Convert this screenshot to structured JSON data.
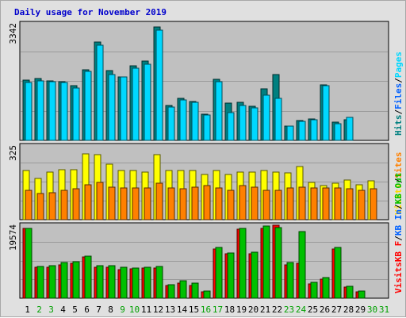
{
  "chart_data": {
    "type": "bar",
    "title": "Daily usage for November 2019",
    "categories": [
      "1",
      "2",
      "3",
      "4",
      "5",
      "6",
      "7",
      "8",
      "9",
      "10",
      "11",
      "12",
      "13",
      "14",
      "15",
      "16",
      "17",
      "18",
      "19",
      "20",
      "21",
      "22",
      "23",
      "24",
      "25",
      "26",
      "27",
      "28",
      "29",
      "30",
      "31"
    ],
    "weekend_days": [
      "2",
      "3",
      "9",
      "10",
      "16",
      "17",
      "23",
      "24",
      "30",
      "31"
    ],
    "panels": [
      {
        "id": "top",
        "ymax_label": "3342",
        "ylim": [
          0,
          3342
        ],
        "side_label": [
          {
            "text": "Hits",
            "color": "#008080"
          },
          {
            "text": "/",
            "color": "#000000"
          },
          {
            "text": "Files",
            "color": "#0060ff"
          },
          {
            "text": "/",
            "color": "#000000"
          },
          {
            "text": "Pages",
            "color": "#00d8ff"
          }
        ],
        "series": [
          {
            "name": "Hits",
            "color": "#008080",
            "values": [
              1730,
              1770,
              1700,
              1690,
              1570,
              2030,
              2810,
              1990,
              1830,
              2140,
              2270,
              3240,
              1000,
              1210,
              1120,
              750,
              1760,
              1070,
              1090,
              970,
              1480,
              1880,
              420,
              560,
              610,
              1600,
              520,
              600,
              0,
              0,
              0
            ]
          },
          {
            "name": "Files",
            "color": "#0060ff",
            "values": [
              0,
              0,
              0,
              0,
              0,
              0,
              0,
              0,
              0,
              0,
              0,
              0,
              0,
              0,
              0,
              0,
              0,
              0,
              0,
              0,
              0,
              0,
              0,
              0,
              0,
              0,
              0,
              0,
              0,
              0,
              0
            ]
          },
          {
            "name": "Pages",
            "color": "#00d8ff",
            "values": [
              1650,
              1700,
              1680,
              1650,
              1510,
              1970,
              2720,
              1890,
              1820,
              2080,
              2190,
              3170,
              950,
              1150,
              1080,
              720,
              1680,
              790,
              1010,
              930,
              1300,
              1210,
              410,
              540,
              590,
              1580,
              480,
              650,
              0,
              0,
              0
            ]
          }
        ]
      },
      {
        "id": "middle",
        "ymax_label": "325",
        "ylim": [
          0,
          325
        ],
        "side_label": [
          {
            "text": "Visits",
            "color": "#ffd800"
          },
          {
            "text": "/",
            "color": "#000000"
          },
          {
            "text": "Sites",
            "color": "#ff8000"
          }
        ],
        "series": [
          {
            "name": "Visits",
            "color": "#ffff00",
            "values": [
              215,
              180,
              210,
              220,
              220,
              290,
              285,
              245,
              215,
              215,
              210,
              285,
              215,
              215,
              215,
              200,
              215,
              200,
              210,
              210,
              215,
              210,
              205,
              235,
              165,
              150,
              160,
              175,
              155,
              170,
              0
            ]
          },
          {
            "name": "Sites",
            "color": "#ff8000",
            "values": [
              130,
              115,
              120,
              130,
              135,
              155,
              165,
              145,
              140,
              140,
              140,
              160,
              140,
              135,
              145,
              150,
              140,
              130,
              150,
              145,
              130,
              130,
              140,
              145,
              140,
              140,
              140,
              135,
              130,
              135,
              0
            ]
          }
        ]
      },
      {
        "id": "bottom",
        "ymax_label": "19574",
        "ylim": [
          0,
          19574
        ],
        "side_label": [
          {
            "text": "Visits",
            "color": "#ff0000"
          },
          {
            "text": "KB F",
            "color": "#ff0000"
          },
          {
            "text": "/",
            "color": "#000000"
          },
          {
            "text": "KB In",
            "color": "#0060ff"
          },
          {
            "text": "/",
            "color": "#000000"
          },
          {
            "text": "KB Out",
            "color": "#00c000"
          }
        ],
        "series": [
          {
            "name": "KB F",
            "color": "#ff0000",
            "values": [
              18700,
              8200,
              8300,
              9000,
              9300,
              11000,
              8200,
              8300,
              7700,
              7900,
              8100,
              8100,
              3300,
              4000,
              3500,
              1700,
              13200,
              12000,
              18500,
              12000,
              18700,
              19574,
              9000,
              9300,
              3800,
              5000,
              13100,
              2900,
              1700,
              0,
              0
            ]
          },
          {
            "name": "KB In",
            "color": "#0060ff",
            "values": [
              0,
              0,
              0,
              0,
              0,
              0,
              0,
              0,
              0,
              0,
              0,
              0,
              0,
              0,
              0,
              0,
              0,
              0,
              0,
              0,
              0,
              0,
              0,
              0,
              0,
              0,
              0,
              0,
              0,
              0,
              0
            ]
          },
          {
            "name": "KB Out",
            "color": "#00c000",
            "values": [
              18700,
              8500,
              8800,
              9600,
              9700,
              11300,
              8800,
              8800,
              8300,
              8100,
              8200,
              8600,
              3700,
              4600,
              4000,
              2000,
              13600,
              12200,
              18800,
              12300,
              19300,
              18900,
              9500,
              17900,
              4200,
              5500,
              13700,
              3100,
              1900,
              0,
              0
            ]
          }
        ]
      }
    ]
  }
}
